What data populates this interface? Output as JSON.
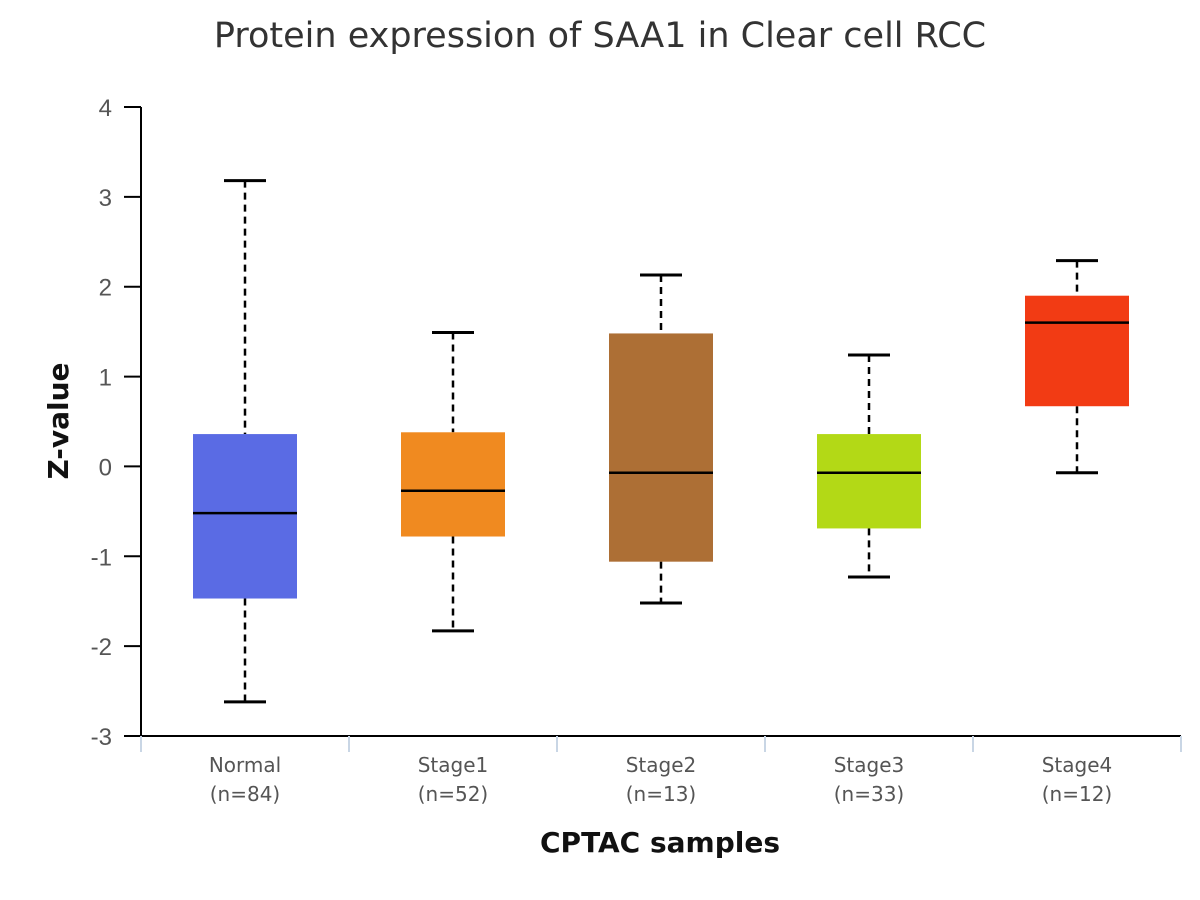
{
  "chart_data": {
    "type": "boxplot",
    "title": "Protein expression of SAA1 in Clear cell RCC",
    "xlabel": "CPTAC samples",
    "ylabel": "Z-value",
    "ylim": [
      -3,
      4
    ],
    "yticks": [
      4,
      3,
      2,
      1,
      0,
      -1,
      -2,
      -3
    ],
    "grid": false,
    "categories": [
      {
        "name": "Normal",
        "n_label": "(n=84)",
        "color": "#5a6be4",
        "whisker_low": -2.62,
        "q1": -1.47,
        "median": -0.52,
        "q3": 0.36,
        "whisker_high": 3.18
      },
      {
        "name": "Stage1",
        "n_label": "(n=52)",
        "color": "#f08a20",
        "whisker_low": -1.83,
        "q1": -0.78,
        "median": -0.27,
        "q3": 0.38,
        "whisker_high": 1.49
      },
      {
        "name": "Stage2",
        "n_label": "(n=13)",
        "color": "#ad6f35",
        "whisker_low": -1.52,
        "q1": -1.06,
        "median": -0.07,
        "q3": 1.48,
        "whisker_high": 2.13
      },
      {
        "name": "Stage3",
        "n_label": "(n=33)",
        "color": "#b3d916",
        "whisker_low": -1.23,
        "q1": -0.69,
        "median": -0.07,
        "q3": 0.36,
        "whisker_high": 1.24
      },
      {
        "name": "Stage4",
        "n_label": "(n=12)",
        "color": "#f23b14",
        "whisker_low": -0.07,
        "q1": 0.67,
        "median": 1.6,
        "q3": 1.9,
        "whisker_high": 2.29
      }
    ]
  }
}
